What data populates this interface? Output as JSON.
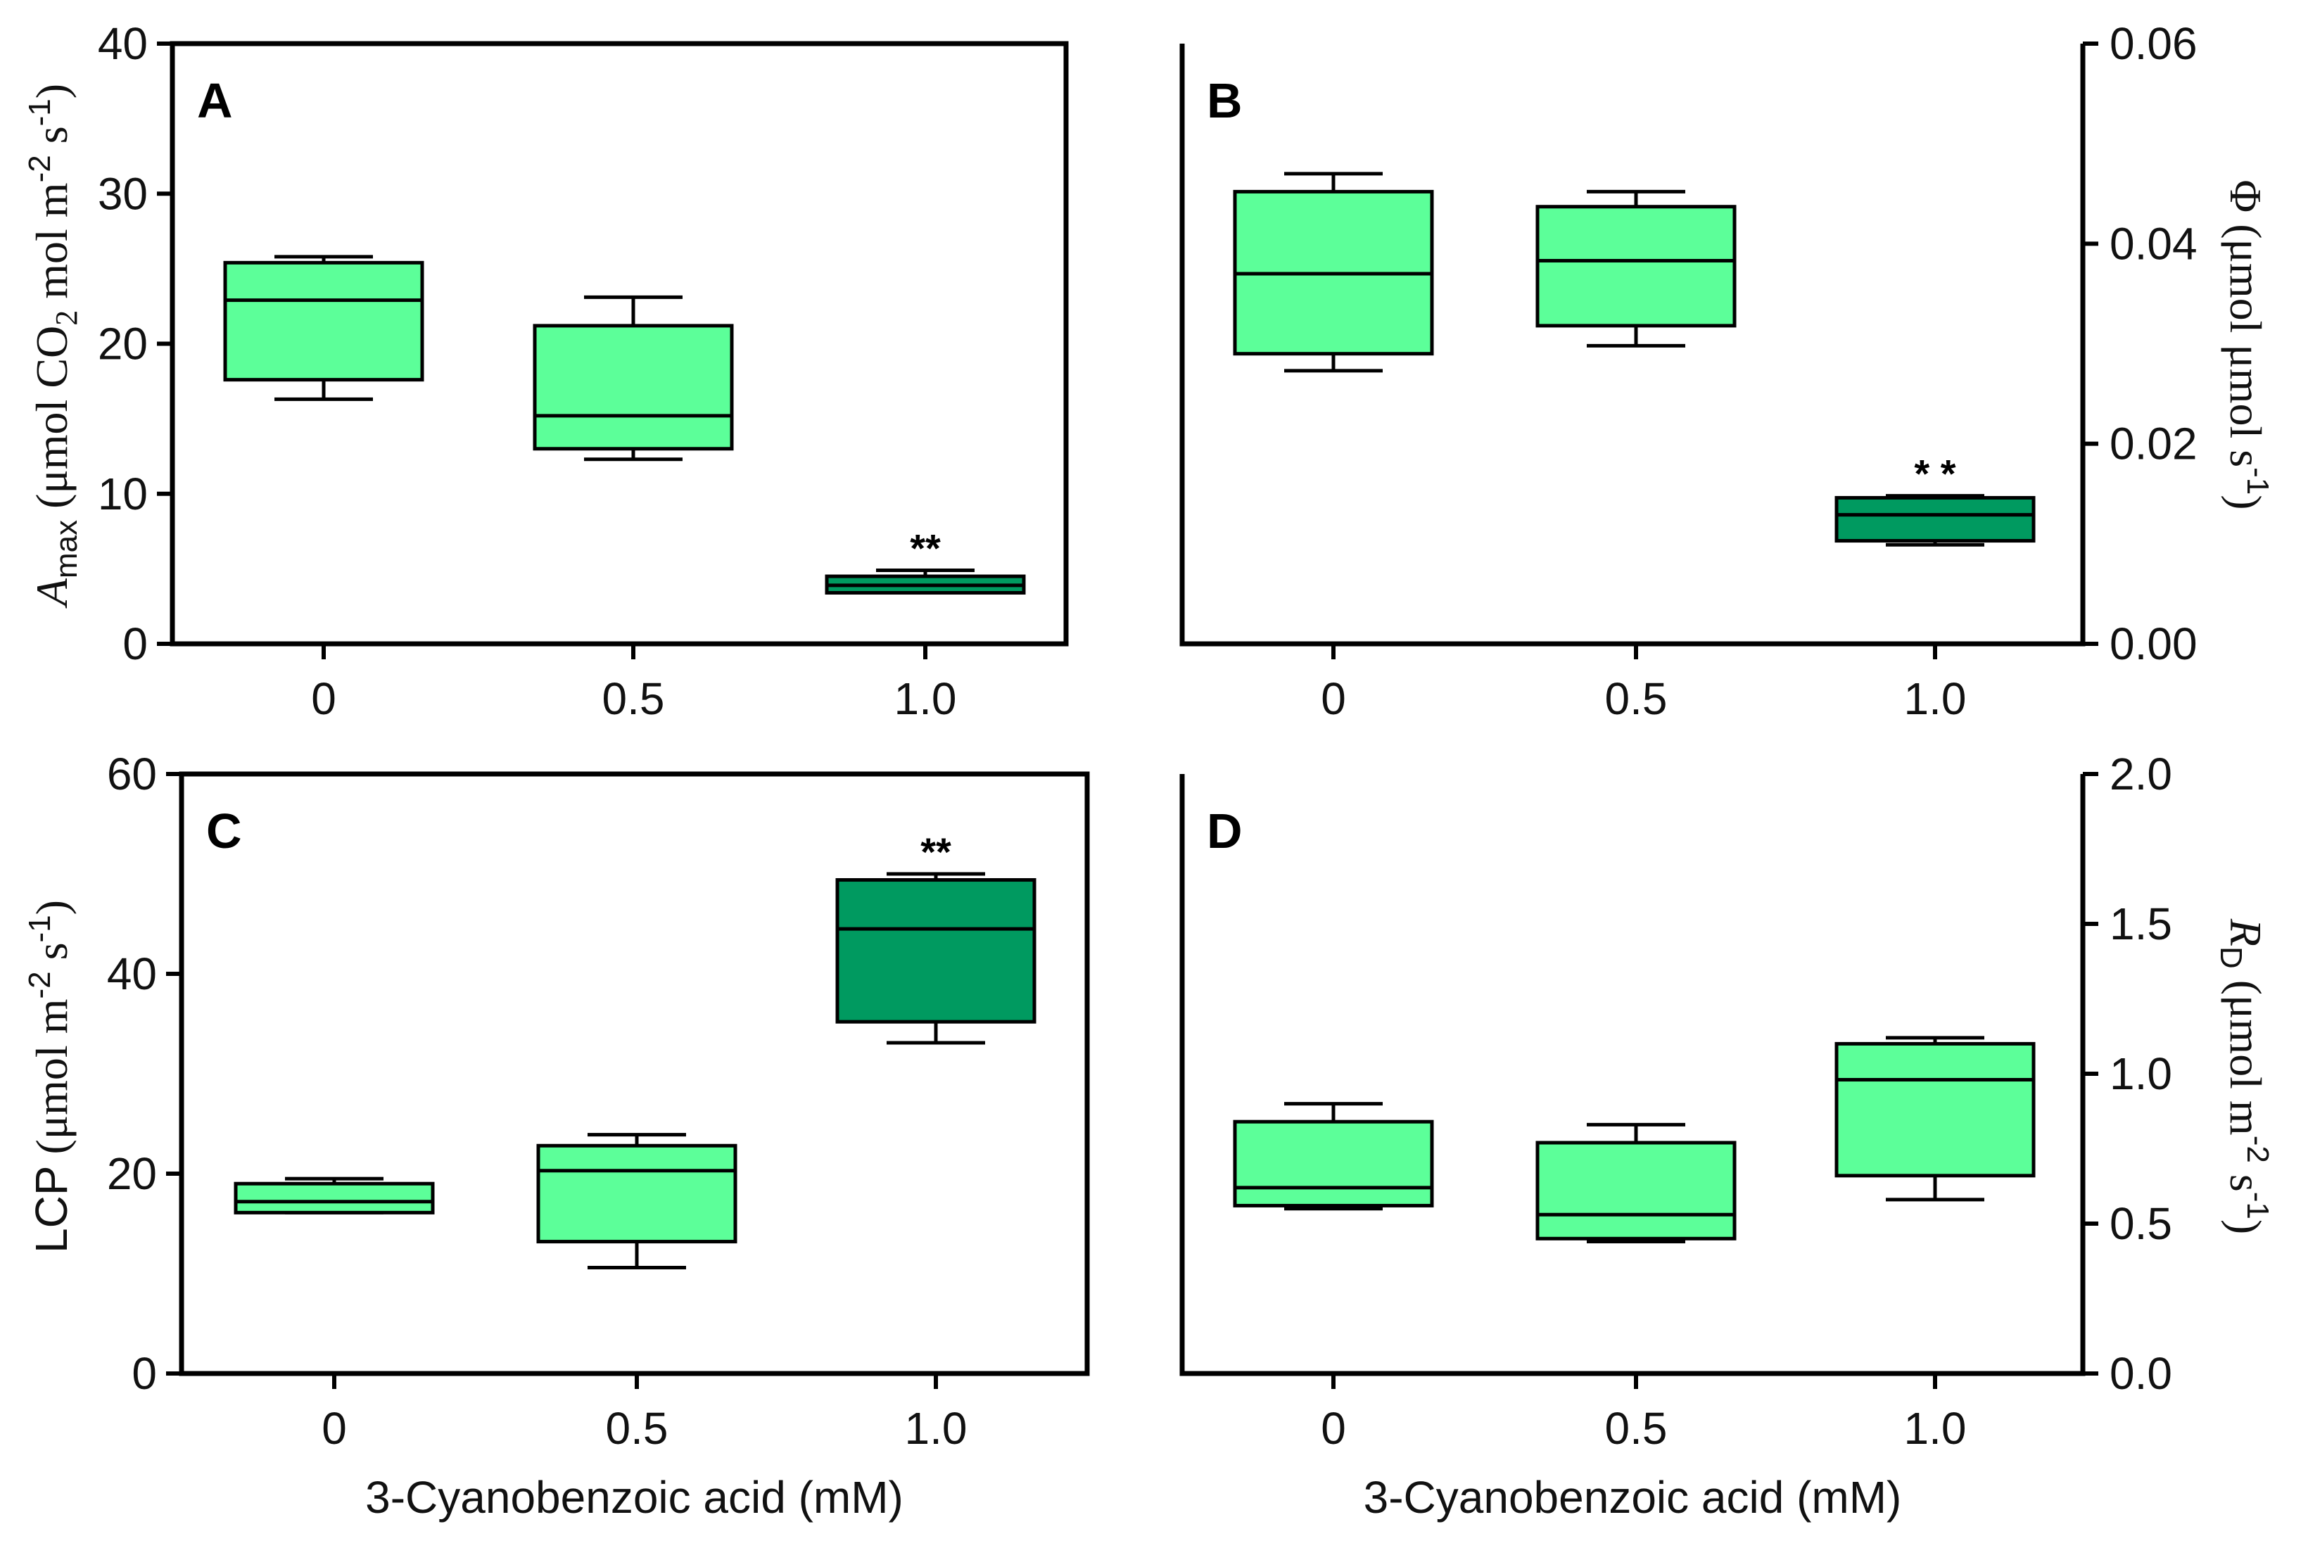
{
  "colors": {
    "light": "#5CFF99",
    "dark": "#009A60"
  },
  "chart_data": [
    {
      "id": "A",
      "panel_label": "A",
      "type": "box",
      "categories": [
        "0",
        "0.5",
        "1.0"
      ],
      "ylim": [
        0,
        40
      ],
      "yticks": [
        "0",
        "10",
        "20",
        "30",
        "40"
      ],
      "ytick_values": [
        0,
        10,
        20,
        30,
        40
      ],
      "xlabel": "",
      "ylabel": {
        "var": "A",
        "sub": "max",
        "unit_open": " (μmol CO",
        "unit_sub": "2",
        "unit_mid": " mol  m",
        "sup1": "-2",
        "unit_mid2": " s",
        "sup2": "-1",
        "unit_close": ")"
      },
      "boxes": [
        {
          "min": 16.3,
          "q1": 17.6,
          "median": 22.9,
          "q3": 25.4,
          "max": 25.8,
          "color": "light",
          "sig": ""
        },
        {
          "min": 12.3,
          "q1": 13.0,
          "median": 15.2,
          "q3": 21.2,
          "max": 23.1,
          "color": "light",
          "sig": ""
        },
        {
          "min": 3.4,
          "q1": 3.4,
          "median": 3.9,
          "q3": 4.5,
          "max": 4.9,
          "color": "dark",
          "sig": "**"
        }
      ]
    },
    {
      "id": "B",
      "panel_label": "B",
      "type": "box",
      "categories": [
        "0",
        "0.5",
        "1.0"
      ],
      "ylim": [
        0,
        0.06
      ],
      "yticks": [
        "0.00",
        "0.02",
        "0.04",
        "0.06"
      ],
      "ytick_values": [
        0,
        0.02,
        0.04,
        0.06
      ],
      "xlabel": "",
      "ylabel": {
        "var": "Φ",
        "unit_open": " (μmol μmol s",
        "sup1": "-1",
        "unit_close": ")"
      },
      "boxes": [
        {
          "min": 0.0273,
          "q1": 0.029,
          "median": 0.037,
          "q3": 0.0452,
          "max": 0.047,
          "color": "light",
          "sig": ""
        },
        {
          "min": 0.0298,
          "q1": 0.0318,
          "median": 0.0383,
          "q3": 0.0437,
          "max": 0.0452,
          "color": "light",
          "sig": ""
        },
        {
          "min": 0.0099,
          "q1": 0.0103,
          "median": 0.0129,
          "q3": 0.0146,
          "max": 0.0148,
          "color": "dark",
          "sig": "* *"
        }
      ]
    },
    {
      "id": "C",
      "panel_label": "C",
      "type": "box",
      "categories": [
        "0",
        "0.5",
        "1.0"
      ],
      "ylim": [
        0,
        60
      ],
      "yticks": [
        "0",
        "20",
        "40",
        "60"
      ],
      "ytick_values": [
        0,
        20,
        40,
        60
      ],
      "xlabel": "3-Cyanobenzoic acid (mM)",
      "ylabel": {
        "var": "LCP",
        "unit_open": " (μmol m",
        "sup1": "-2",
        "unit_mid": " s",
        "sup2": "-1",
        "unit_close": ")"
      },
      "boxes": [
        {
          "min": 16.1,
          "q1": 16.1,
          "median": 17.2,
          "q3": 19.0,
          "max": 19.5,
          "color": "light",
          "sig": ""
        },
        {
          "min": 10.6,
          "q1": 13.2,
          "median": 20.3,
          "q3": 22.8,
          "max": 23.9,
          "color": "light",
          "sig": ""
        },
        {
          "min": 33.1,
          "q1": 35.2,
          "median": 44.5,
          "q3": 49.4,
          "max": 50.0,
          "color": "dark",
          "sig": "**"
        }
      ]
    },
    {
      "id": "D",
      "panel_label": "D",
      "type": "box",
      "categories": [
        "0",
        "0.5",
        "1.0"
      ],
      "ylim": [
        0,
        2.0
      ],
      "yticks": [
        "0.0",
        "0.5",
        "1.0",
        "1.5",
        "2.0"
      ],
      "ytick_values": [
        0,
        0.5,
        1.0,
        1.5,
        2.0
      ],
      "xlabel": "3-Cyanobenzoic acid (mM)",
      "ylabel": {
        "var": "R",
        "sub": "D",
        "unit_open": " (μmol m",
        "sup1": "-2",
        "unit_mid": " s",
        "sup2": "-1",
        "unit_close": ")"
      },
      "boxes": [
        {
          "min": 0.55,
          "q1": 0.56,
          "median": 0.62,
          "q3": 0.84,
          "max": 0.9,
          "color": "light",
          "sig": ""
        },
        {
          "min": 0.44,
          "q1": 0.45,
          "median": 0.53,
          "q3": 0.77,
          "max": 0.83,
          "color": "light",
          "sig": ""
        },
        {
          "min": 0.58,
          "q1": 0.66,
          "median": 0.98,
          "q3": 1.1,
          "max": 1.12,
          "color": "light",
          "sig": ""
        }
      ]
    }
  ]
}
